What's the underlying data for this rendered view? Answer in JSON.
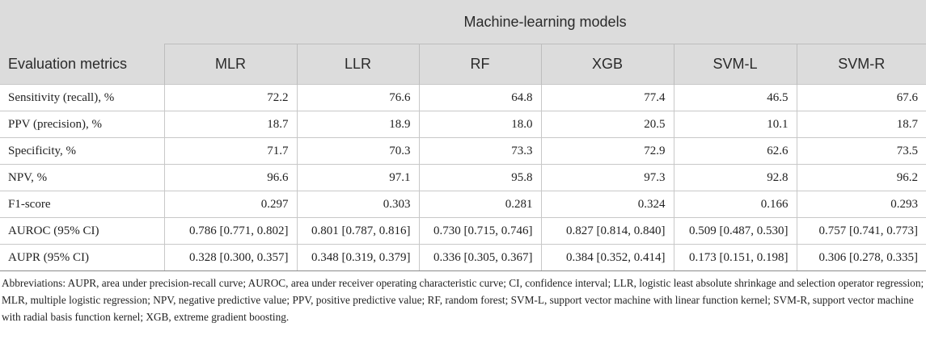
{
  "table": {
    "group_header": "Machine-learning models",
    "first_column_header": "Evaluation metrics",
    "columns": [
      "MLR",
      "LLR",
      "RF",
      "XGB",
      "SVM-L",
      "SVM-R"
    ],
    "rows": [
      {
        "label": "Sensitivity (recall), %",
        "values": [
          "72.2",
          "76.6",
          "64.8",
          "77.4",
          "46.5",
          "67.6"
        ]
      },
      {
        "label": "PPV (precision), %",
        "values": [
          "18.7",
          "18.9",
          "18.0",
          "20.5",
          "10.1",
          "18.7"
        ]
      },
      {
        "label": "Specificity, %",
        "values": [
          "71.7",
          "70.3",
          "73.3",
          "72.9",
          "62.6",
          "73.5"
        ]
      },
      {
        "label": "NPV, %",
        "values": [
          "96.6",
          "97.1",
          "95.8",
          "97.3",
          "92.8",
          "96.2"
        ]
      },
      {
        "label": "F1-score",
        "values": [
          "0.297",
          "0.303",
          "0.281",
          "0.324",
          "0.166",
          "0.293"
        ]
      },
      {
        "label": "AUROC (95% CI)",
        "values": [
          "0.786 [0.771, 0.802]",
          "0.801 [0.787, 0.816]",
          "0.730 [0.715, 0.746]",
          "0.827 [0.814, 0.840]",
          "0.509 [0.487, 0.530]",
          "0.757 [0.741, 0.773]"
        ]
      },
      {
        "label": "AUPR (95% CI)",
        "values": [
          "0.328 [0.300, 0.357]",
          "0.348 [0.319, 0.379]",
          "0.336 [0.305, 0.367]",
          "0.384 [0.352, 0.414]",
          "0.173 [0.151, 0.198]",
          "0.306 [0.278, 0.335]"
        ]
      }
    ]
  },
  "footnote": "Abbreviations: AUPR, area under precision-recall curve; AUROC, area under receiver operating characteristic curve; CI, confidence interval; LLR, logistic least absolute shrinkage and selection operator regression; MLR, multiple logistic regression; NPV, negative predictive value; PPV, positive predictive value; RF, random forest; SVM-L, support vector machine with linear function kernel; SVM-R, support vector machine with radial basis function kernel; XGB, extreme gradient boosting."
}
